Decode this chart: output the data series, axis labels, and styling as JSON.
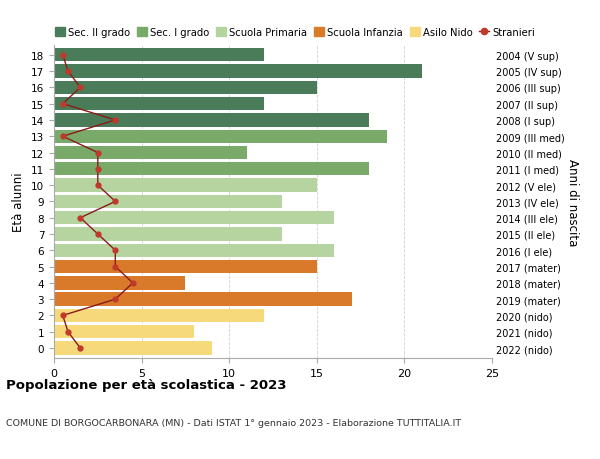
{
  "ages": [
    18,
    17,
    16,
    15,
    14,
    13,
    12,
    11,
    10,
    9,
    8,
    7,
    6,
    5,
    4,
    3,
    2,
    1,
    0
  ],
  "years": [
    "2004 (V sup)",
    "2005 (IV sup)",
    "2006 (III sup)",
    "2007 (II sup)",
    "2008 (I sup)",
    "2009 (III med)",
    "2010 (II med)",
    "2011 (I med)",
    "2012 (V ele)",
    "2013 (IV ele)",
    "2014 (III ele)",
    "2015 (II ele)",
    "2016 (I ele)",
    "2017 (mater)",
    "2018 (mater)",
    "2019 (mater)",
    "2020 (nido)",
    "2021 (nido)",
    "2022 (nido)"
  ],
  "bar_values": [
    12,
    21,
    15,
    12,
    18,
    19,
    11,
    18,
    15,
    13,
    16,
    13,
    16,
    15,
    7.5,
    17,
    12,
    8,
    9
  ],
  "bar_colors": [
    "#4a7c59",
    "#4a7c59",
    "#4a7c59",
    "#4a7c59",
    "#4a7c59",
    "#7aaa6a",
    "#7aaa6a",
    "#7aaa6a",
    "#b5d4a0",
    "#b5d4a0",
    "#b5d4a0",
    "#b5d4a0",
    "#b5d4a0",
    "#d97a2a",
    "#d97a2a",
    "#d97a2a",
    "#f5d97a",
    "#f5d97a",
    "#f5d97a"
  ],
  "stranieri_values": [
    0.5,
    0.8,
    1.5,
    0.5,
    3.5,
    0.5,
    2.5,
    2.5,
    2.5,
    3.5,
    1.5,
    2.5,
    3.5,
    3.5,
    4.5,
    3.5,
    0.5,
    0.8,
    1.5
  ],
  "legend_labels": [
    "Sec. II grado",
    "Sec. I grado",
    "Scuola Primaria",
    "Scuola Infanzia",
    "Asilo Nido",
    "Stranieri"
  ],
  "legend_colors": [
    "#4a7c59",
    "#7aaa6a",
    "#b5d4a0",
    "#d97a2a",
    "#f5d97a",
    "#c0392b"
  ],
  "title": "Popolazione per età scolastica - 2023",
  "subtitle": "COMUNE DI BORGOCARBONARA (MN) - Dati ISTAT 1° gennaio 2023 - Elaborazione TUTTITALIA.IT",
  "ylabel": "Età alunni",
  "ylabel2": "Anni di nascita",
  "xlim": [
    0,
    25
  ],
  "background_color": "#ffffff",
  "grid_color": "#d0d0d0"
}
